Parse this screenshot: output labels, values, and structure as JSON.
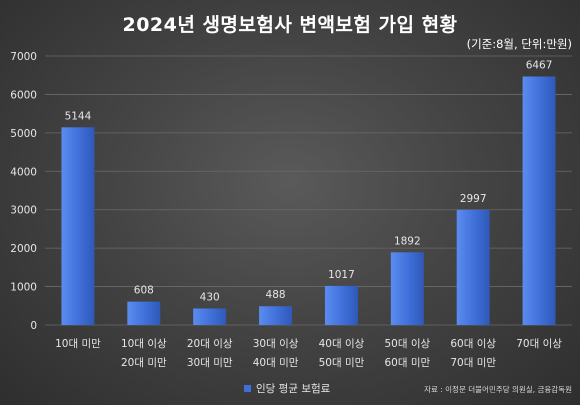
{
  "title": "2024년 생명보험사 변액보험 가입 현황",
  "subtitle": "(기준:8월, 단위:만원)",
  "source": "자료 : 이정문 더불어민주당 의원실, 금융감독원",
  "chart_data": {
    "type": "bar",
    "categories": [
      [
        "10대 미만"
      ],
      [
        "10대 이상",
        "20대 미만"
      ],
      [
        "20대 이상",
        "30대 미만"
      ],
      [
        "30대 이상",
        "40대 미만"
      ],
      [
        "40대 이상",
        "50대 미만"
      ],
      [
        "50대 이상",
        "60대 미만"
      ],
      [
        "60대 이상",
        "70대 미만"
      ],
      [
        "70대 이상"
      ]
    ],
    "series": [
      {
        "name": "인당 평균 보험료",
        "values": [
          5144,
          608,
          430,
          488,
          1017,
          1892,
          2997,
          6467
        ]
      }
    ],
    "yticks": [
      0,
      1000,
      2000,
      3000,
      4000,
      5000,
      6000,
      7000
    ],
    "ylim": [
      0,
      7000
    ],
    "grid": true,
    "legend_position": "bottom",
    "bar_color": "#3f6fd8"
  }
}
